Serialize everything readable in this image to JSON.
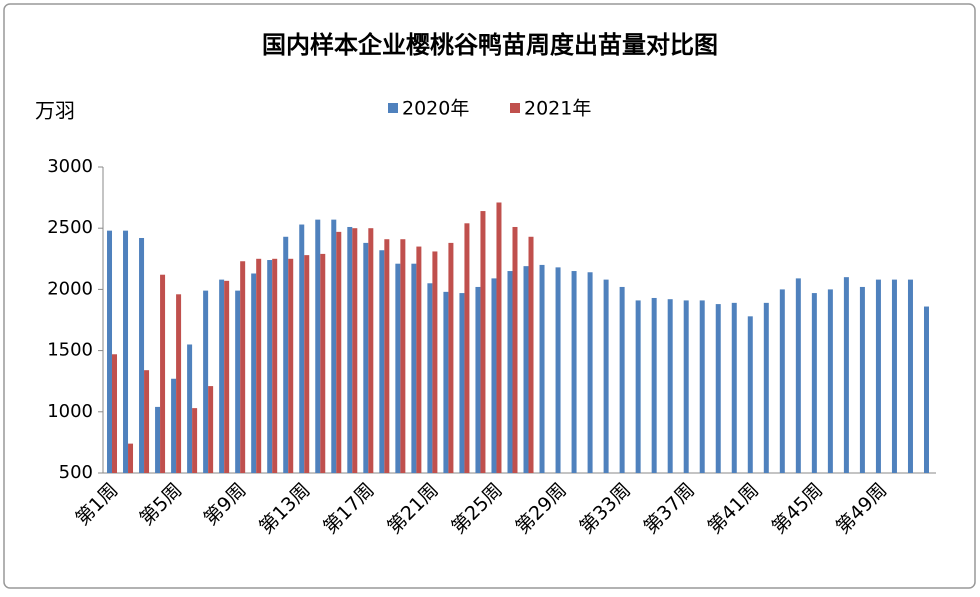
{
  "chart_data": {
    "type": "bar",
    "title": "国内样本企业樱桃谷鸭苗周度出苗量对比图",
    "y_label": "万羽",
    "categories": [
      "第1周",
      null,
      null,
      null,
      "第5周",
      null,
      null,
      null,
      "第9周",
      null,
      null,
      null,
      "第13周",
      null,
      null,
      null,
      "第17周",
      null,
      null,
      null,
      "第21周",
      null,
      null,
      null,
      "第25周",
      null,
      null,
      null,
      "第29周",
      null,
      null,
      null,
      "第33周",
      null,
      null,
      null,
      "第37周",
      null,
      null,
      null,
      "第41周",
      null,
      null,
      null,
      "第45周",
      null,
      null,
      null,
      "第49周",
      null,
      null,
      null
    ],
    "series": [
      {
        "name": "2020年",
        "color": "#4f81bd",
        "values": [
          2480,
          2480,
          2420,
          1040,
          1270,
          1550,
          1990,
          2080,
          1990,
          2130,
          2240,
          2430,
          2530,
          2570,
          2570,
          2510,
          2380,
          2320,
          2210,
          2210,
          2050,
          1980,
          1970,
          2020,
          2090,
          2150,
          2190,
          2200,
          2180,
          2150,
          2140,
          2080,
          2020,
          1910,
          1930,
          1920,
          1910,
          1910,
          1880,
          1890,
          1780,
          1890,
          2000,
          2090,
          1970,
          2000,
          2100,
          2020,
          2080,
          2080,
          2080,
          1860
        ]
      },
      {
        "name": "2021年",
        "color": "#c0504d",
        "values": [
          1470,
          740,
          1340,
          2120,
          1960,
          1030,
          1210,
          2070,
          2230,
          2250,
          2250,
          2250,
          2280,
          2290,
          2470,
          2500,
          2500,
          2410,
          2410,
          2350,
          2310,
          2380,
          2540,
          2640,
          2710,
          2510,
          2430,
          null,
          null,
          null,
          null,
          null,
          null,
          null,
          null,
          null,
          null,
          null,
          null,
          null,
          null,
          null,
          null,
          null,
          null,
          null,
          null,
          null,
          null,
          null,
          null,
          null
        ]
      }
    ],
    "ylim": [
      500,
      3000
    ],
    "yticks": [
      500,
      1000,
      1500,
      2000,
      2500,
      3000
    ],
    "grid": false
  }
}
